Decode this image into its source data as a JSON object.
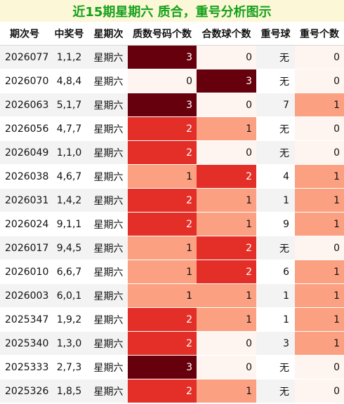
{
  "title": "近15期星期六 质合，重号分析图示",
  "headers": [
    "期次号",
    "中奖号",
    "星期次",
    "质数号码个数",
    "合数球个数",
    "重号球",
    "重号个数"
  ],
  "rows": [
    {
      "issue": "2026077",
      "draw": "1,1,2",
      "day": "星期六",
      "prime_count": "3",
      "composite_count": "0",
      "repeat_ball": "无",
      "repeat_count": "0"
    },
    {
      "issue": "2026070",
      "draw": "4,8,4",
      "day": "星期六",
      "prime_count": "0",
      "composite_count": "3",
      "repeat_ball": "无",
      "repeat_count": "0"
    },
    {
      "issue": "2026063",
      "draw": "5,1,7",
      "day": "星期六",
      "prime_count": "3",
      "composite_count": "0",
      "repeat_ball": "7",
      "repeat_count": "1"
    },
    {
      "issue": "2026056",
      "draw": "4,7,7",
      "day": "星期六",
      "prime_count": "2",
      "composite_count": "1",
      "repeat_ball": "无",
      "repeat_count": "0"
    },
    {
      "issue": "2026049",
      "draw": "1,1,0",
      "day": "星期六",
      "prime_count": "2",
      "composite_count": "0",
      "repeat_ball": "无",
      "repeat_count": "0"
    },
    {
      "issue": "2026038",
      "draw": "4,6,7",
      "day": "星期六",
      "prime_count": "1",
      "composite_count": "2",
      "repeat_ball": "4",
      "repeat_count": "1"
    },
    {
      "issue": "2026031",
      "draw": "1,4,2",
      "day": "星期六",
      "prime_count": "2",
      "composite_count": "1",
      "repeat_ball": "1",
      "repeat_count": "1"
    },
    {
      "issue": "2026024",
      "draw": "9,1,1",
      "day": "星期六",
      "prime_count": "2",
      "composite_count": "1",
      "repeat_ball": "9",
      "repeat_count": "1"
    },
    {
      "issue": "2026017",
      "draw": "9,4,5",
      "day": "星期六",
      "prime_count": "1",
      "composite_count": "2",
      "repeat_ball": "无",
      "repeat_count": "0"
    },
    {
      "issue": "2026010",
      "draw": "6,6,7",
      "day": "星期六",
      "prime_count": "1",
      "composite_count": "2",
      "repeat_ball": "6",
      "repeat_count": "1"
    },
    {
      "issue": "2026003",
      "draw": "6,0,1",
      "day": "星期六",
      "prime_count": "1",
      "composite_count": "1",
      "repeat_ball": "1",
      "repeat_count": "1"
    },
    {
      "issue": "2025347",
      "draw": "1,9,2",
      "day": "星期六",
      "prime_count": "2",
      "composite_count": "1",
      "repeat_ball": "1",
      "repeat_count": "1"
    },
    {
      "issue": "2025340",
      "draw": "1,3,0",
      "day": "星期六",
      "prime_count": "2",
      "composite_count": "0",
      "repeat_ball": "3",
      "repeat_count": "1"
    },
    {
      "issue": "2025333",
      "draw": "2,7,3",
      "day": "星期六",
      "prime_count": "3",
      "composite_count": "0",
      "repeat_ball": "无",
      "repeat_count": "0"
    },
    {
      "issue": "2025326",
      "draw": "1,8,5",
      "day": "星期六",
      "prime_count": "2",
      "composite_count": "1",
      "repeat_ball": "无",
      "repeat_count": "0"
    }
  ],
  "colors": {
    "title_bg": "#fbf7d7",
    "title_text": "#16a11b",
    "heat_0": "#fff5f0",
    "heat_1": "#fca082",
    "heat_2": "#e32f27",
    "heat_3": "#67000d"
  }
}
